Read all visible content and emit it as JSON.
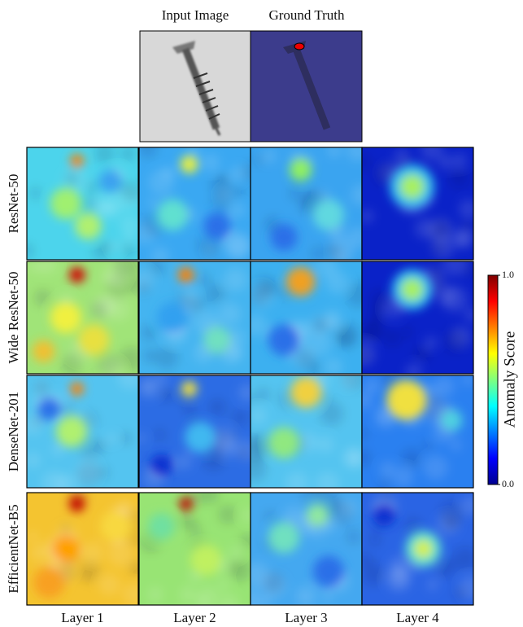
{
  "header": {
    "columns": [
      "Input Image",
      "Ground Truth"
    ]
  },
  "rows": [
    "ResNet-50",
    "Wide ResNet-50",
    "DenseNet-201",
    "EfficientNet-B5"
  ],
  "columns": [
    "Layer 1",
    "Layer 2",
    "Layer 3",
    "Layer 4"
  ],
  "colorbar": {
    "label": "Anomaly Score",
    "lim": [
      0,
      1
    ],
    "ticks": [
      {
        "value": 0,
        "label": "0.0"
      },
      {
        "value": 1,
        "label": "1.0"
      }
    ]
  }
}
